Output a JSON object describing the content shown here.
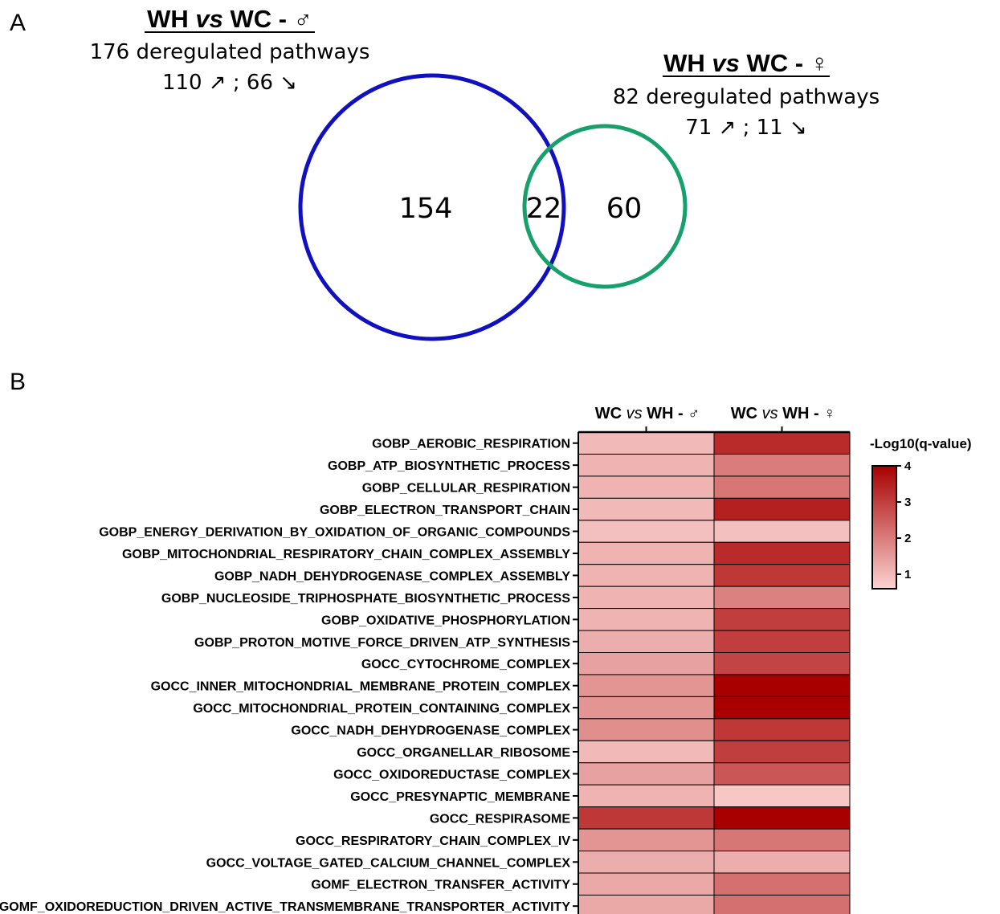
{
  "panel_a": {
    "letter": "A",
    "male": {
      "title_pre": "WH ",
      "title_vs": "vs",
      "title_post": " WC - ♂",
      "total": "176 deregulated pathways",
      "updown": "110 ↗ ; 66 ↘",
      "color": "#1010c0"
    },
    "female": {
      "title_pre": "WH ",
      "title_vs": "vs",
      "title_post": " WC - ♀",
      "total": "82 deregulated pathways",
      "updown": "71 ↗ ; 11 ↘",
      "color": "#17a06b"
    },
    "counts": {
      "male_only": "154",
      "overlap": "22",
      "female_only": "60"
    }
  },
  "panel_b": {
    "letter": "B",
    "columns": [
      {
        "pre": "WC ",
        "vs": "vs",
        "post": " WH - ♂"
      },
      {
        "pre": "WC ",
        "vs": "vs",
        "post": " WH - ♀"
      }
    ],
    "legend": {
      "title": "-Log10(q-value)",
      "ticks": [
        "1",
        "2",
        "3",
        "4"
      ],
      "color_low": "#fbd3d1",
      "color_high": "#a80000"
    }
  },
  "chart_data": {
    "type": "heatmap",
    "x": [
      "WC vs WH - ♂",
      "WC vs WH - ♀"
    ],
    "colorbar_label": "-Log10(q-value)",
    "zlim": [
      0.6,
      4
    ],
    "rows": [
      {
        "label": "GOBP_AEROBIC_RESPIRATION",
        "values": [
          1.0,
          3.3
        ]
      },
      {
        "label": "GOBP_ATP_BIOSYNTHETIC_PROCESS",
        "values": [
          1.1,
          2.0
        ]
      },
      {
        "label": "GOBP_CELLULAR_RESPIRATION",
        "values": [
          1.1,
          2.1
        ]
      },
      {
        "label": "GOBP_ELECTRON_TRANSPORT_CHAIN",
        "values": [
          1.0,
          3.5
        ]
      },
      {
        "label": "GOBP_ENERGY_DERIVATION_BY_OXIDATION_OF_ORGANIC_COMPOUNDS",
        "values": [
          0.9,
          0.9
        ]
      },
      {
        "label": "GOBP_MITOCHONDRIAL_RESPIRATORY_CHAIN_COMPLEX_ASSEMBLY",
        "values": [
          1.1,
          3.3
        ]
      },
      {
        "label": "GOBP_NADH_DEHYDROGENASE_COMPLEX_ASSEMBLY",
        "values": [
          1.1,
          3.1
        ]
      },
      {
        "label": "GOBP_NUCLEOSIDE_TRIPHOSPHATE_BIOSYNTHETIC_PROCESS",
        "values": [
          1.1,
          1.9
        ]
      },
      {
        "label": "GOBP_OXIDATIVE_PHOSPHORYLATION",
        "values": [
          1.1,
          3.0
        ]
      },
      {
        "label": "GOBP_PROTON_MOTIVE_FORCE_DRIVEN_ATP_SYNTHESIS",
        "values": [
          1.2,
          3.0
        ]
      },
      {
        "label": "GOCC_CYTOCHROME_COMPLEX",
        "values": [
          1.4,
          2.9
        ]
      },
      {
        "label": "GOCC_INNER_MITOCHONDRIAL_MEMBRANE_PROTEIN_COMPLEX",
        "values": [
          1.6,
          4.0
        ]
      },
      {
        "label": "GOCC_MITOCHONDRIAL_PROTEIN_CONTAINING_COMPLEX",
        "values": [
          1.6,
          4.0
        ]
      },
      {
        "label": "GOCC_NADH_DEHYDROGENASE_COMPLEX",
        "values": [
          1.7,
          3.1
        ]
      },
      {
        "label": "GOCC_ORGANELLAR_RIBOSOME",
        "values": [
          1.0,
          3.0
        ]
      },
      {
        "label": "GOCC_OXIDOREDUCTASE_COMPLEX",
        "values": [
          1.4,
          2.6
        ]
      },
      {
        "label": "GOCC_PRESYNAPTIC_MEMBRANE",
        "values": [
          1.1,
          0.8
        ]
      },
      {
        "label": "GOCC_RESPIRASOME",
        "values": [
          3.1,
          4.0
        ]
      },
      {
        "label": "GOCC_RESPIRATORY_CHAIN_COMPLEX_IV",
        "values": [
          1.6,
          2.1
        ]
      },
      {
        "label": "GOCC_VOLTAGE_GATED_CALCIUM_CHANNEL_COMPLEX",
        "values": [
          1.2,
          1.2
        ]
      },
      {
        "label": "GOMF_ELECTRON_TRANSFER_ACTIVITY",
        "values": [
          1.3,
          2.2
        ]
      },
      {
        "label": "GOMF_OXIDOREDUCTION_DRIVEN_ACTIVE_TRANSMEMBRANE_TRANSPORTER_ACTIVITY",
        "values": [
          1.3,
          2.2
        ]
      }
    ]
  }
}
